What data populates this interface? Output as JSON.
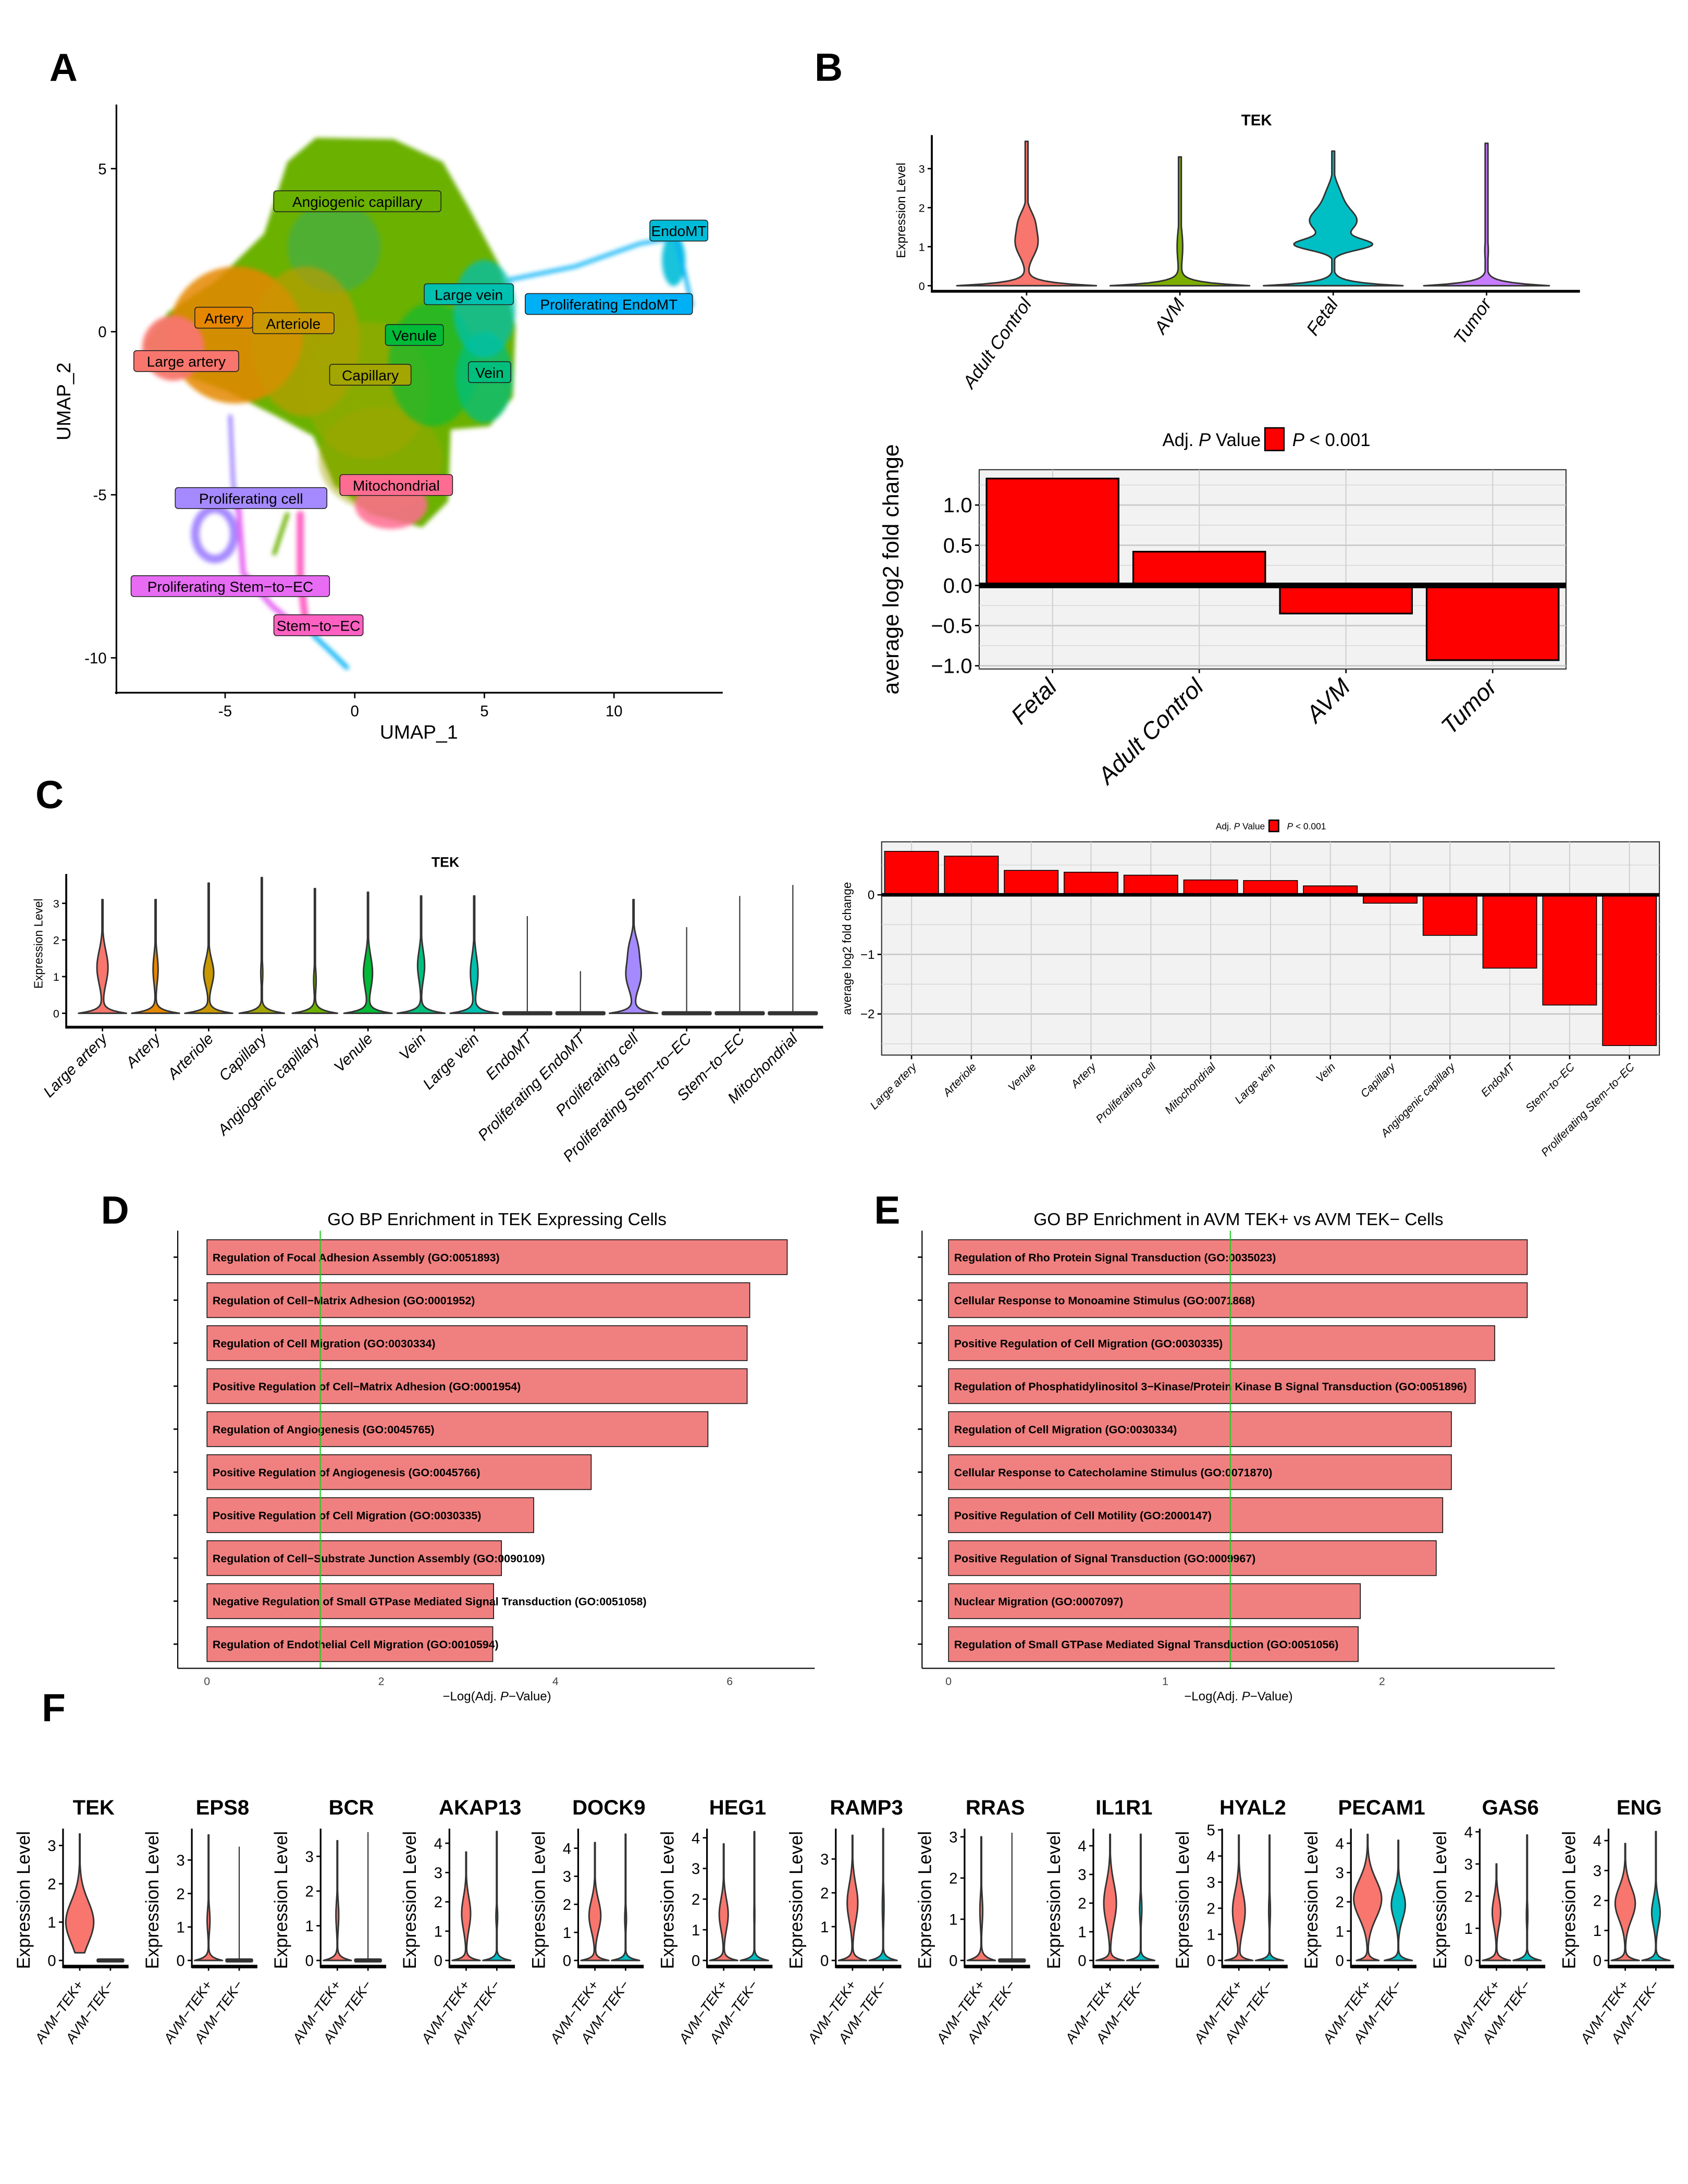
{
  "panel_labels": [
    "A",
    "B",
    "C",
    "D",
    "E",
    "F"
  ],
  "chart_data": [
    {
      "type": "scatter",
      "subtype": "umap",
      "xlabel": "UMAP_1",
      "ylabel": "UMAP_2",
      "xlim": [
        -9.2,
        14.2
      ],
      "ylim": [
        -11.1,
        7.0
      ],
      "xticks": [
        -5,
        0,
        5,
        10
      ],
      "yticks": [
        5,
        0,
        -5,
        -10
      ],
      "clusters": [
        {
          "name": "Angiogenic capillary",
          "color": "#6BB100",
          "label_x": 0.1,
          "label_y": 4.0
        },
        {
          "name": "EndoMT",
          "color": "#00BCD8",
          "label_x": 12.5,
          "label_y": 3.1
        },
        {
          "name": "Large vein",
          "color": "#00C0AF",
          "label_x": 4.4,
          "label_y": 1.15
        },
        {
          "name": "Proliferating EndoMT",
          "color": "#00B0F6",
          "label_x": 9.8,
          "label_y": 0.85
        },
        {
          "name": "Artery",
          "color": "#E58700",
          "label_x": -5.05,
          "label_y": 0.43
        },
        {
          "name": "Arteriole",
          "color": "#C99800",
          "label_x": -2.37,
          "label_y": 0.26
        },
        {
          "name": "Venule",
          "color": "#00BA38",
          "label_x": 2.3,
          "label_y": -0.1
        },
        {
          "name": "Large artery",
          "color": "#F8766D",
          "label_x": -6.5,
          "label_y": -0.9
        },
        {
          "name": "Vein",
          "color": "#00BF7D",
          "label_x": 5.2,
          "label_y": -1.24
        },
        {
          "name": "Capillary",
          "color": "#A3A500",
          "label_x": 0.6,
          "label_y": -1.32
        },
        {
          "name": "Mitochondrial",
          "color": "#FF6C91",
          "label_x": 1.6,
          "label_y": -4.7
        },
        {
          "name": "Proliferating cell",
          "color": "#A58AFF",
          "label_x": -4.0,
          "label_y": -5.1
        },
        {
          "name": "Proliferating Stem−to−EC",
          "color": "#E76BF3",
          "label_x": -4.8,
          "label_y": -7.8
        },
        {
          "name": "Stem−to−EC",
          "color": "#FF61C3",
          "label_x": -1.4,
          "label_y": -9.0
        }
      ]
    },
    {
      "type": "violin",
      "title": "TEK",
      "ylabel": "Expression Level",
      "yticks": [
        0,
        1,
        2,
        3
      ],
      "ylim": [
        -0.15,
        3.86
      ],
      "categories": [
        "Adult Control",
        "AVM",
        "Fetal",
        "Tumor"
      ],
      "violins": [
        {
          "color": "#F8766D",
          "max": 3.7,
          "base": 1.0,
          "modes": [
            [
              1.1,
              0.16,
              0.35
            ],
            [
              1.7,
              0.08,
              0.25
            ]
          ]
        },
        {
          "color": "#7CAE00",
          "max": 3.3,
          "base": 1.0,
          "modes": [
            [
              1.0,
              0.04,
              0.45
            ]
          ]
        },
        {
          "color": "#00BFC4",
          "max": 3.45,
          "base": 1.0,
          "modes": [
            [
              1.05,
              0.52,
              0.14
            ],
            [
              1.65,
              0.33,
              0.3
            ],
            [
              2.3,
              0.1,
              0.3
            ]
          ]
        },
        {
          "color": "#C77CFF",
          "max": 3.65,
          "base": 0.9,
          "modes": [
            [
              0.9,
              0.025,
              0.3
            ]
          ]
        }
      ]
    },
    {
      "type": "bar",
      "ylabel": "average log2 fold change",
      "legend": {
        "title_pre": "Adj. ",
        "title_italic": "P",
        "title_post": " Value",
        "item_italic": "P",
        "item_post": " < 0.001",
        "color": "#FF0000"
      },
      "categories": [
        "Fetal",
        "Adult Control",
        "AVM",
        "Tumor"
      ],
      "values": [
        1.33,
        0.42,
        -0.35,
        -0.93
      ],
      "ylim": [
        -1.04,
        1.44
      ],
      "yticks": [
        1.0,
        0.5,
        0.0,
        -0.5,
        -1.0
      ],
      "ytick_labels": [
        "1.0",
        "0.5",
        "0.0",
        "−0.5",
        "−1.0"
      ]
    },
    {
      "type": "violin",
      "title": "TEK",
      "ylabel": "Expression Level",
      "yticks": [
        0,
        1,
        2,
        3
      ],
      "ylim": [
        -0.35,
        3.8
      ],
      "categories": [
        "Large artery",
        "Artery",
        "Arteriole",
        "Capillary",
        "Angiogenic capillary",
        "Venule",
        "Vein",
        "Large vein",
        "EndoMT",
        "Proliferating EndoMT",
        "Proliferating cell",
        "Proliferating Stem−to−EC",
        "Stem−to−EC",
        "Mitochondrial"
      ],
      "violins": [
        {
          "color": "#F8766D",
          "max": 3.1,
          "base": 0.95,
          "modes": [
            [
              1.25,
              0.22,
              0.45
            ]
          ]
        },
        {
          "color": "#E58700",
          "max": 3.1,
          "base": 0.95,
          "modes": [
            [
              1.2,
              0.1,
              0.4
            ]
          ]
        },
        {
          "color": "#C99800",
          "max": 3.55,
          "base": 0.95,
          "modes": [
            [
              1.1,
              0.2,
              0.35
            ]
          ]
        },
        {
          "color": "#A3A500",
          "max": 3.7,
          "base": 0.9,
          "modes": [
            [
              1.1,
              0.04,
              0.3
            ]
          ]
        },
        {
          "color": "#6BB100",
          "max": 3.4,
          "base": 0.9,
          "modes": [
            [
              0.9,
              0.05,
              0.3
            ]
          ]
        },
        {
          "color": "#00BA38",
          "max": 3.3,
          "base": 0.95,
          "modes": [
            [
              1.1,
              0.18,
              0.45
            ]
          ]
        },
        {
          "color": "#00BF7D",
          "max": 3.2,
          "base": 0.95,
          "modes": [
            [
              1.3,
              0.14,
              0.4
            ]
          ]
        },
        {
          "color": "#00C0AF",
          "max": 3.2,
          "base": 0.95,
          "modes": [
            [
              1.1,
              0.15,
              0.45
            ]
          ]
        },
        {
          "color": "#00BCD8",
          "max": 2.65,
          "base": 1.0,
          "flat": true,
          "modes": []
        },
        {
          "color": "#00B0F6",
          "max": 1.15,
          "base": 1.0,
          "flat": true,
          "modes": []
        },
        {
          "color": "#A58AFF",
          "max": 3.1,
          "base": 0.95,
          "modes": [
            [
              1.05,
              0.3,
              0.4
            ],
            [
              1.8,
              0.15,
              0.3
            ]
          ]
        },
        {
          "color": "#E76BF3",
          "max": 2.35,
          "base": 1.0,
          "flat": true,
          "modes": []
        },
        {
          "color": "#FF61C3",
          "max": 3.2,
          "base": 1.0,
          "flat": true,
          "modes": []
        },
        {
          "color": "#FF6C91",
          "max": 3.5,
          "base": 1.0,
          "flat": true,
          "modes": []
        }
      ]
    },
    {
      "type": "bar",
      "ylabel": "average log2 fold change",
      "legend": {
        "title_pre": "Adj. ",
        "title_italic": "P",
        "title_post": " Value",
        "item_italic": "P",
        "item_post": " < 0.001",
        "color": "#FF0000"
      },
      "categories": [
        "Large artery",
        "Arteriole",
        "Venule",
        "Artery",
        "Proliferating cell",
        "Mitochondrial",
        "Large vein",
        "Vein",
        "Capillary",
        "Angiogenic capillary",
        "EndoMT",
        "Stem−to−EC",
        "Proliferating Stem−to−EC"
      ],
      "values": [
        0.73,
        0.65,
        0.41,
        0.38,
        0.33,
        0.25,
        0.24,
        0.15,
        -0.14,
        -0.68,
        -1.23,
        -1.85,
        -2.53
      ],
      "ylim": [
        -2.69,
        0.89
      ],
      "yticks": [
        0,
        -1,
        -2
      ],
      "ytick_labels": [
        "0",
        "−1",
        "−2"
      ]
    },
    {
      "type": "bar",
      "orientation": "horizontal",
      "title": "GO BP Enrichment in TEK Expressing Cells",
      "xlabel": {
        "pre": "−Log(Adj. ",
        "italic": "P",
        "post": "−Value)"
      },
      "xticks": [
        0,
        2,
        4,
        6
      ],
      "xlim": [
        -0.34,
        6.98
      ],
      "threshold": 1.3,
      "bar_color": "#F08080",
      "terms": [
        "Regulation of Focal Adhesion Assembly (GO:0051893)",
        "Regulation of Cell−Matrix Adhesion (GO:0001952)",
        "Regulation of Cell Migration (GO:0030334)",
        "Positive Regulation of Cell−Matrix Adhesion (GO:0001954)",
        "Regulation of Angiogenesis (GO:0045765)",
        "Positive Regulation of Angiogenesis (GO:0045766)",
        "Positive Regulation of Cell Migration (GO:0030335)",
        "Regulation of Cell−Substrate Junction Assembly (GO:0090109)",
        "Negative Regulation of Small GTPase Mediated Signal Transduction (GO:0051058)",
        "Regulation of Endothelial Cell Migration (GO:0010594)"
      ],
      "values": [
        6.66,
        6.23,
        6.2,
        6.2,
        5.75,
        4.41,
        3.75,
        3.38,
        3.29,
        3.28
      ]
    },
    {
      "type": "bar",
      "orientation": "horizontal",
      "title": "GO BP Enrichment in AVM TEK+ vs AVM TEK− Cells",
      "xlabel": {
        "pre": "−Log(Adj. ",
        "italic": "P",
        "post": "−Value)"
      },
      "xticks": [
        0,
        1,
        2
      ],
      "xlim": [
        -0.12,
        2.8
      ],
      "threshold": 1.3,
      "bar_color": "#F08080",
      "terms": [
        "Regulation of Rho Protein Signal Transduction (GO:0035023)",
        "Cellular Response to Monoamine Stimulus (GO:0071868)",
        "Positive Regulation of Cell Migration (GO:0030335)",
        "Regulation of Phosphatidylinositol 3−Kinase/Protein Kinase B Signal Transduction (GO:0051896)",
        "Regulation of Cell Migration (GO:0030334)",
        "Cellular Response to Catecholamine Stimulus (GO:0071870)",
        "Positive Regulation of Cell Motility (GO:2000147)",
        "Positive Regulation of Signal Transduction (GO:0009967)",
        "Nuclear Migration (GO:0007097)",
        "Regulation of Small GTPase Mediated Signal Transduction (GO:0051056)"
      ],
      "values": [
        2.67,
        2.67,
        2.52,
        2.43,
        2.32,
        2.32,
        2.28,
        2.25,
        1.9,
        1.89
      ]
    },
    {
      "type": "violin",
      "ylabel": "Expression Level",
      "categories": [
        "AVM−TEK+",
        "AVM−TEK−"
      ],
      "colors": [
        "#F8766D",
        "#00BFC4"
      ],
      "panels": [
        {
          "gene": "TEK",
          "ymax": 3.44,
          "yticks": [
            0,
            1,
            2,
            3
          ],
          "violins": [
            {
              "min": 0.2,
              "max": 3.3,
              "base": 0,
              "modes": [
                [
                  1.0,
                  1.0,
                  0.55
                ]
              ]
            },
            {
              "max": 0,
              "flat": true,
              "base": 1,
              "modes": []
            }
          ]
        },
        {
          "gene": "EPS8",
          "ymax": 3.94,
          "yticks": [
            0,
            1,
            2,
            3
          ],
          "violins": [
            {
              "max": 3.75,
              "base": 1,
              "modes": [
                [
                  1.2,
                  0.1,
                  0.35
                ]
              ]
            },
            {
              "max": 3.4,
              "flat": true,
              "base": 1,
              "modes": []
            }
          ]
        },
        {
          "gene": "BCR",
          "ymax": 3.8,
          "yticks": [
            0,
            1,
            2,
            3
          ],
          "violins": [
            {
              "max": 3.45,
              "base": 1,
              "modes": [
                [
                  1.3,
                  0.1,
                  0.4
                ]
              ]
            },
            {
              "max": 3.7,
              "flat": true,
              "base": 1,
              "modes": []
            }
          ]
        },
        {
          "gene": "AKAP13",
          "ymax": 4.5,
          "yticks": [
            0,
            1,
            2,
            3,
            4
          ],
          "violins": [
            {
              "max": 3.7,
              "base": 1,
              "modes": [
                [
                  1.6,
                  0.32,
                  0.55
                ]
              ]
            },
            {
              "max": 4.4,
              "base": 1,
              "modes": [
                [
                  1.5,
                  0.06,
                  0.3
                ]
              ]
            }
          ]
        },
        {
          "gene": "DOCK9",
          "ymax": 4.7,
          "yticks": [
            0,
            1,
            2,
            3,
            4
          ],
          "violins": [
            {
              "max": 4.2,
              "base": 1,
              "modes": [
                [
                  1.6,
                  0.42,
                  0.55
                ]
              ]
            },
            {
              "max": 4.5,
              "base": 1,
              "modes": [
                [
                  1.5,
                  0.06,
                  0.35
                ]
              ]
            }
          ]
        },
        {
          "gene": "HEG1",
          "ymax": 4.3,
          "yticks": [
            0,
            1,
            2,
            3,
            4
          ],
          "violins": [
            {
              "max": 3.8,
              "base": 1,
              "modes": [
                [
                  1.5,
                  0.32,
                  0.5
                ]
              ]
            },
            {
              "max": 4.2,
              "base": 1,
              "modes": [
                [
                  1.5,
                  0.03,
                  0.4
                ]
              ]
            }
          ]
        },
        {
          "gene": "RAMP3",
          "ymax": 3.9,
          "yticks": [
            0,
            1,
            2,
            3
          ],
          "violins": [
            {
              "max": 3.7,
              "base": 1,
              "modes": [
                [
                  1.7,
                  0.38,
                  0.55
                ]
              ]
            },
            {
              "max": 3.9,
              "base": 1,
              "modes": [
                [
                  1.6,
                  0.06,
                  0.5
                ]
              ]
            }
          ]
        },
        {
          "gene": "RRAS",
          "ymax": 3.2,
          "yticks": [
            0,
            1,
            2,
            3
          ],
          "violins": [
            {
              "max": 3.0,
              "base": 1,
              "modes": [
                [
                  1.2,
                  0.1,
                  0.35
                ]
              ]
            },
            {
              "max": 3.1,
              "flat": true,
              "base": 1,
              "modes": []
            }
          ]
        },
        {
          "gene": "IL1R1",
          "ymax": 4.6,
          "yticks": [
            0,
            1,
            2,
            3,
            4
          ],
          "violins": [
            {
              "max": 4.4,
              "base": 1,
              "modes": [
                [
                  2.0,
                  0.45,
                  0.7
                ]
              ]
            },
            {
              "max": 4.4,
              "base": 1,
              "modes": [
                [
                  1.8,
                  0.08,
                  0.4
                ]
              ]
            }
          ]
        },
        {
          "gene": "HYAL2",
          "ymax": 5.05,
          "yticks": [
            0,
            1,
            2,
            3,
            4,
            5
          ],
          "violins": [
            {
              "max": 4.8,
              "base": 1,
              "modes": [
                [
                  1.9,
                  0.45,
                  0.75
                ]
              ]
            },
            {
              "max": 4.8,
              "base": 1,
              "modes": [
                [
                  1.9,
                  0.06,
                  0.5
                ]
              ]
            }
          ]
        },
        {
          "gene": "PECAM1",
          "ymax": 4.5,
          "yticks": [
            0,
            1,
            2,
            3,
            4
          ],
          "violins": [
            {
              "max": 4.3,
              "base": 0.8,
              "modes": [
                [
                  2.1,
                  1.0,
                  0.65
                ]
              ]
            },
            {
              "max": 4.1,
              "base": 1,
              "modes": [
                [
                  1.9,
                  0.5,
                  0.5
                ]
              ]
            }
          ]
        },
        {
          "gene": "GAS6",
          "ymax": 4.1,
          "yticks": [
            0,
            1,
            2,
            3,
            4
          ],
          "violins": [
            {
              "max": 3.0,
              "base": 1,
              "modes": [
                [
                  1.5,
                  0.3,
                  0.45
                ]
              ]
            },
            {
              "max": 3.9,
              "base": 1,
              "modes": [
                [
                  1.4,
                  0.05,
                  0.35
                ]
              ]
            }
          ]
        },
        {
          "gene": "ENG",
          "ymax": 4.4,
          "yticks": [
            0,
            1,
            2,
            3,
            4
          ],
          "violins": [
            {
              "max": 3.9,
              "base": 1,
              "modes": [
                [
                  1.9,
                  0.72,
                  0.55
                ]
              ]
            },
            {
              "max": 4.3,
              "base": 1,
              "modes": [
                [
                  1.6,
                  0.3,
                  0.45
                ]
              ]
            }
          ]
        }
      ]
    }
  ]
}
